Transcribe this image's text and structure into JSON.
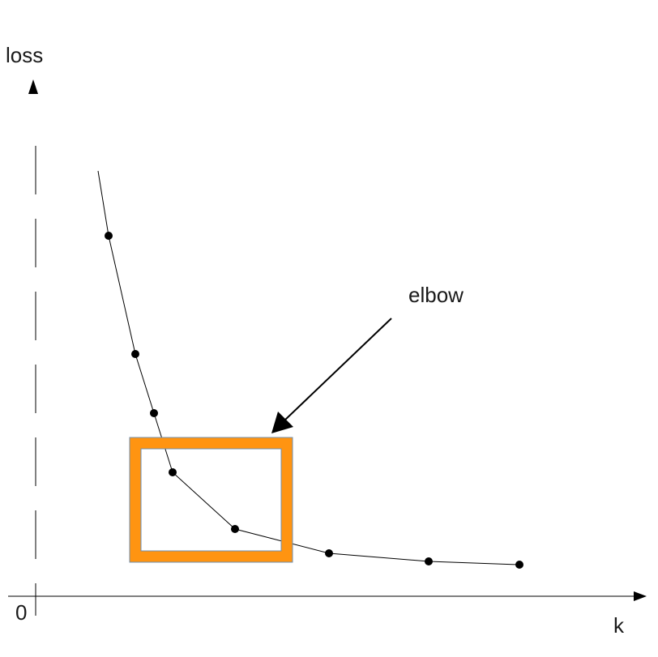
{
  "labels": {
    "y_axis": "loss",
    "x_axis": "k",
    "origin": "0",
    "annotation": "elbow"
  },
  "colors": {
    "highlight": "#ff9411",
    "line": "#000000",
    "text": "#1a1a1a"
  }
}
